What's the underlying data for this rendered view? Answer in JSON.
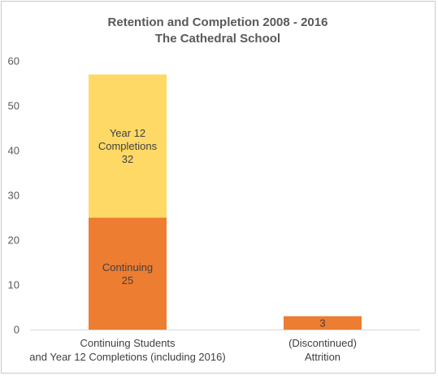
{
  "chart_data": {
    "type": "bar",
    "stacked": true,
    "title": "Retention and Completion 2008 - 2016",
    "subtitle": "The Cathedral School",
    "xlabel": "",
    "ylabel": "",
    "ylim": [
      0,
      60
    ],
    "yticks": [
      0,
      10,
      20,
      30,
      40,
      50,
      60
    ],
    "grid": false,
    "legend": "none",
    "categories": [
      [
        "Continuing Students",
        "and Year 12 Completions (including 2016)"
      ],
      [
        "(Discontinued)",
        "Attrition"
      ]
    ],
    "series": [
      {
        "name": "Continuing",
        "color": "#ED7D31",
        "values": [
          25,
          3
        ],
        "data_labels": [
          [
            "Continuing",
            "25"
          ],
          [
            "3"
          ]
        ]
      },
      {
        "name": "Year 12 Completions",
        "color": "#FFD966",
        "values": [
          32,
          null
        ],
        "data_labels": [
          [
            "Year 12",
            "Completions",
            "32"
          ],
          []
        ]
      }
    ]
  }
}
